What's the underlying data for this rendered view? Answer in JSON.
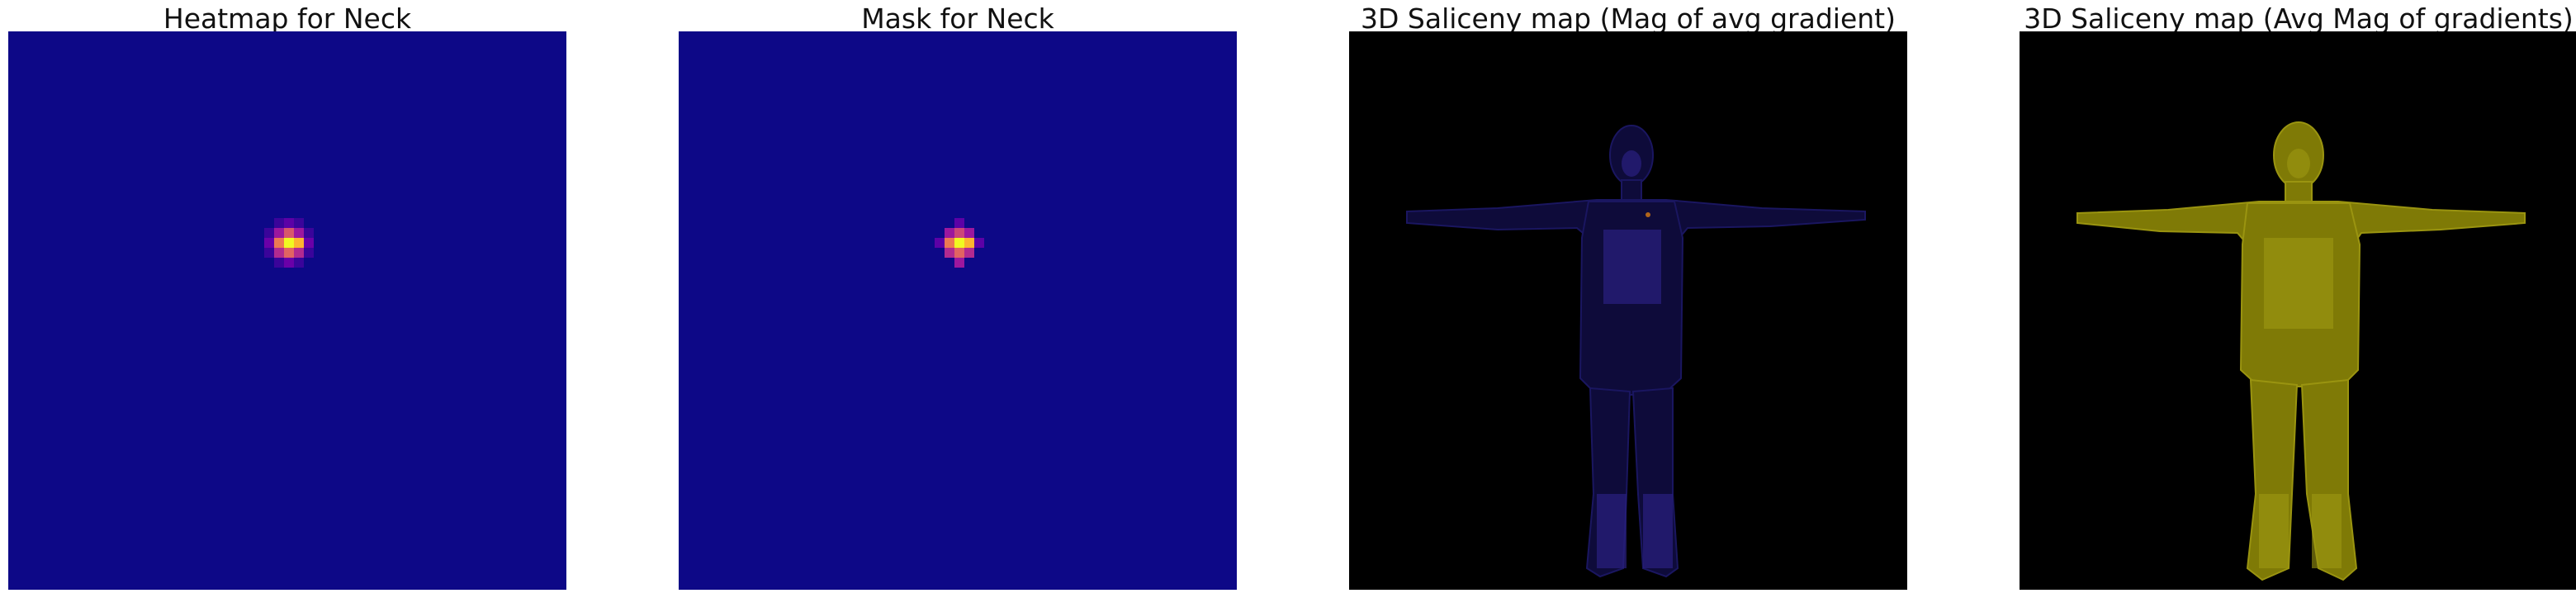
{
  "panels": [
    {
      "title": "Heatmap for Neck",
      "image": "neck-heatmap",
      "colors": {
        "background": "#0d0887",
        "peak": "#f0f921"
      }
    },
    {
      "title": "Mask for Neck",
      "image": "neck-mask",
      "colors": {
        "background": "#0d0887",
        "peak": "#f0f921"
      }
    },
    {
      "title": "3D Saliceny map (Mag of avg gradient)",
      "image": "human-body-saliency-dark",
      "colors": {
        "background": "#000000",
        "figure": "#0e0b3a"
      }
    },
    {
      "title": "3D Saliceny map (Avg Mag of gradients)",
      "image": "human-body-saliency-yellow",
      "colors": {
        "background": "#000000",
        "figure": "#7f7a06"
      }
    }
  ]
}
